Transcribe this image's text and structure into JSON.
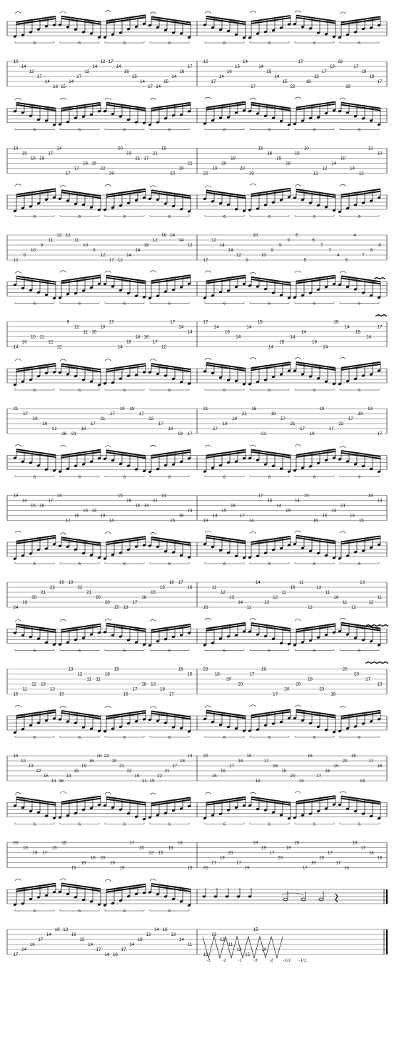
{
  "document": {
    "type": "guitar-tablature",
    "tuplet_label": "6",
    "vibrato_symbol": "~~~",
    "systems": [
      {
        "bars": [
          {
            "frets": [
              "10",
              "14",
              "12",
              "17",
              "14",
              "16",
              "15",
              "14",
              "17",
              "12",
              "14",
              "12",
              "17",
              "14",
              "16",
              "15",
              "14",
              "17",
              "14",
              "15",
              "14",
              "16",
              "17"
            ]
          },
          {
            "frets": [
              "12",
              "17",
              "14",
              "16",
              "15",
              "14",
              "17",
              "14",
              "15",
              "14",
              "15",
              "22",
              "17",
              "16",
              "15",
              "17",
              "19",
              "16",
              "19",
              "17",
              "19",
              "19",
              "17"
            ]
          }
        ]
      },
      {
        "bars": [
          {
            "frets": [
              "19",
              "15",
              "15",
              "18",
              "17",
              "14",
              "17",
              "17",
              "16",
              "15",
              "22",
              "19",
              "20",
              "19",
              "21",
              "17",
              "21",
              "19",
              "20",
              "19",
              "22"
            ]
          },
          {
            "frets": [
              "22",
              "19",
              "20",
              "19",
              "20",
              "19",
              "15",
              "16",
              "15",
              "18",
              "15",
              "10",
              "12",
              "12",
              "14",
              "10",
              "14",
              "12",
              "12",
              "10"
            ]
          }
        ]
      },
      {
        "bars": [
          {
            "frets": [
              "12",
              "9",
              "10",
              "9",
              "11",
              "12",
              "12",
              "11",
              "10",
              "9",
              "12",
              "17",
              "12",
              "14",
              "14",
              "16",
              "12",
              "16",
              "14",
              "14",
              "12"
            ]
          },
          {
            "frets": [
              "17",
              "12",
              "14",
              "14",
              "12",
              "9",
              "10",
              "10",
              "9",
              "9",
              "9",
              "5",
              "5",
              "6",
              "7",
              "7",
              "4",
              "5",
              "4",
              "7",
              "6",
              "8"
            ]
          }
        ]
      },
      {
        "bars": [
          {
            "frets": [
              "14",
              "10",
              "10",
              "11",
              "12",
              "12",
              "9",
              "12",
              "11",
              "10",
              "10",
              "17",
              "14",
              "15",
              "14",
              "16",
              "17",
              "12",
              "17",
              "14",
              "14"
            ]
          },
          {
            "frets": [
              "17",
              "14",
              "15",
              "14",
              "14",
              "15",
              "14",
              "15",
              "14",
              "14",
              "18",
              "14",
              "15",
              "14",
              "15",
              "14",
              "17"
            ]
          }
        ]
      },
      {
        "bars": [
          {
            "frets": [
              "21",
              "17",
              "19",
              "19",
              "21",
              "16",
              "21",
              "19",
              "17",
              "21",
              "17",
              "19",
              "19",
              "17",
              "22",
              "17",
              "19",
              "19",
              "17"
            ]
          },
          {
            "frets": [
              "21",
              "17",
              "19",
              "19",
              "21",
              "16",
              "21",
              "19",
              "17",
              "21",
              "17",
              "19",
              "19",
              "17",
              "22",
              "17",
              "19",
              "19",
              "17"
            ]
          }
        ]
      },
      {
        "bars": [
          {
            "frets": [
              "19",
              "14",
              "15",
              "16",
              "17",
              "14",
              "17",
              "16",
              "15",
              "14",
              "19",
              "14",
              "15",
              "16",
              "15",
              "14",
              "21",
              "14",
              "15",
              "16",
              "14"
            ]
          },
          {
            "frets": [
              "19",
              "14",
              "15",
              "16",
              "17",
              "14",
              "17",
              "15",
              "14",
              "19",
              "14",
              "15",
              "16",
              "15",
              "14",
              "21",
              "14",
              "15",
              "16",
              "14"
            ]
          }
        ]
      },
      {
        "bars": [
          {
            "frets": [
              "24",
              "19",
              "20",
              "21",
              "22",
              "19",
              "19",
              "22",
              "21",
              "20",
              "20",
              "15",
              "18",
              "17",
              "18",
              "15",
              "15",
              "18",
              "17",
              "16"
            ]
          },
          {
            "frets": [
              "16",
              "11",
              "12",
              "13",
              "14",
              "11",
              "14",
              "13",
              "12",
              "11",
              "16",
              "11",
              "12",
              "13",
              "11",
              "16",
              "11",
              "12",
              "13",
              "12",
              "11"
            ]
          }
        ]
      },
      {
        "bars": [
          {
            "frets": [
              "15",
              "11",
              "12",
              "13",
              "13",
              "10",
              "13",
              "12",
              "11",
              "11",
              "18",
              "15",
              "16",
              "17",
              "18",
              "13",
              "18",
              "17",
              "16",
              "15"
            ]
          },
          {
            "frets": [
              "23",
              "18",
              "20",
              "20",
              "17",
              "18",
              "17",
              "20",
              "20",
              "18",
              "23",
              "18",
              "20",
              "20",
              "17",
              "13"
            ]
          }
        ]
      },
      {
        "bars": [
          {
            "frets": [
              "15",
              "12",
              "13",
              "12",
              "15",
              "13",
              "16",
              "13",
              "15",
              "19",
              "16",
              "18",
              "22",
              "19",
              "21",
              "22",
              "19",
              "21",
              "19",
              "22",
              "21",
              "17",
              "18",
              "19"
            ]
          },
          {
            "frets": [
              "20",
              "15",
              "16",
              "17",
              "18",
              "15",
              "18",
              "17",
              "16",
              "15",
              "20",
              "15",
              "16",
              "17",
              "16",
              "15",
              "22",
              "15",
              "18",
              "17",
              "16"
            ]
          }
        ]
      },
      {
        "bars": [
          {
            "frets": [
              "20",
              "15",
              "16",
              "17",
              "15",
              "15",
              "15",
              "16",
              "15",
              "20",
              "15",
              "16",
              "17",
              "15",
              "22",
              "15",
              "16",
              "18",
              "15"
            ]
          },
          {
            "frets": [
              "20",
              "17",
              "19",
              "20",
              "17",
              "19",
              "19",
              "19",
              "17",
              "20",
              "19",
              "20",
              "17",
              "19",
              "20",
              "17",
              "17",
              "14",
              "16",
              "17",
              "14",
              "16"
            ]
          }
        ]
      },
      {
        "bars": [
          {
            "frets": [
              "17",
              "14",
              "16",
              "17",
              "14",
              "16",
              "13",
              "16",
              "15",
              "14",
              "17",
              "14",
              "16",
              "17",
              "14",
              "16",
              "13",
              "14",
              "16",
              "13",
              "14",
              "11"
            ]
          },
          {
            "frets": [
              "12",
              "13",
              "12",
              "11",
              "12",
              "15",
              "15",
              "10"
            ]
          }
        ]
      }
    ],
    "ending": {
      "bend_labels": [
        "-3",
        "-2",
        "-1",
        "-3",
        "-2",
        "-1/2",
        "-1/2"
      ]
    }
  }
}
